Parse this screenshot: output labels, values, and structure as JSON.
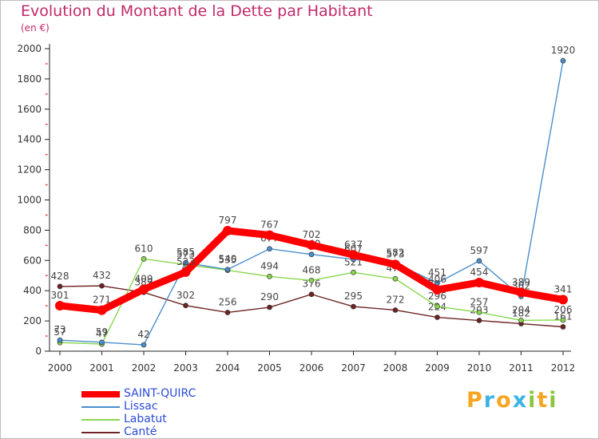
{
  "header": {
    "title": "Evolution du Montant de la Dette par Habitant",
    "subtitle": "(en €)"
  },
  "brand": {
    "letters": [
      "P",
      "r",
      "o",
      "x",
      "i",
      "t",
      "i"
    ],
    "colors": [
      "#f5a623",
      "#3cb4e5",
      "#f5a623",
      "#3cb4e5",
      "#8cc63f",
      "#f5a623",
      "#8cc63f"
    ]
  },
  "chart_data": {
    "type": "line",
    "title": "Evolution du Montant de la Dette par Habitant",
    "subtitle": "(en €)",
    "xlabel": "",
    "ylabel": "",
    "ylim": [
      0,
      2000
    ],
    "yticks": [
      0,
      200,
      400,
      600,
      800,
      1000,
      1200,
      1400,
      1600,
      1800,
      2000
    ],
    "grid": false,
    "legend_position": "bottom-left",
    "categories": [
      "2000",
      "2001",
      "2002",
      "2003",
      "2004",
      "2005",
      "2006",
      "2007",
      "2008",
      "2009",
      "2010",
      "2011",
      "2012"
    ],
    "series": [
      {
        "name": "Canté",
        "color": "#6e2323",
        "values": [
          428,
          432,
          389,
          302,
          256,
          290,
          376,
          295,
          272,
          224,
          203,
          182,
          161
        ]
      },
      {
        "name": "Labatut",
        "color": "#88d84e",
        "values": [
          57,
          47,
          610,
          573,
          535,
          494,
          468,
          521,
          479,
          296,
          257,
          204,
          206
        ]
      },
      {
        "name": "Lissac",
        "color": "#4a8fcc",
        "values": [
          73,
          59,
          42,
          585,
          540,
          677,
          640,
          607,
          582,
          451,
          597,
          362,
          1920
        ]
      },
      {
        "name": "SAINT-QUIRC",
        "color": "#ff0000",
        "values": [
          301,
          271,
          409,
          523,
          797,
          767,
          702,
          637,
          573,
          406,
          454,
          389,
          341
        ]
      }
    ]
  }
}
